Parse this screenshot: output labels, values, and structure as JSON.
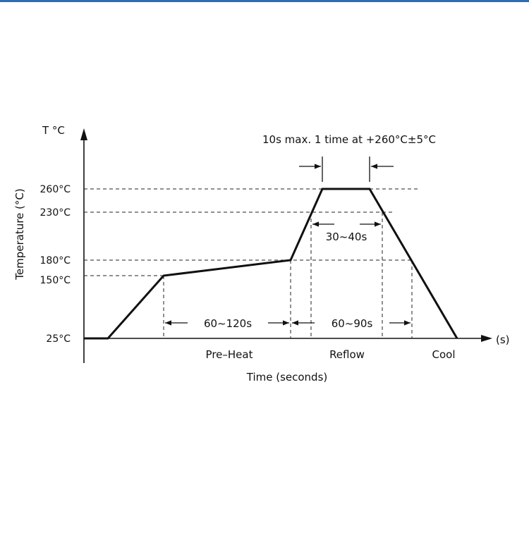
{
  "header_rule_color": "#2f6db0",
  "axis": {
    "y_unit": "T °C",
    "y_label": "Temperature (°C)",
    "x_unit": "(s)",
    "x_label": "Time (seconds)"
  },
  "y_ticks": [
    "260°C",
    "230°C",
    "180°C",
    "150°C",
    "25°C"
  ],
  "phases": {
    "preheat": "Pre–Heat",
    "reflow": "Reflow",
    "cool": "Cool"
  },
  "intervals": {
    "preheat_duration": "60~120s",
    "above_180_duration": "60~90s",
    "above_230_duration": "30~40s",
    "peak_note": "10s max. 1 time at +260°C±5°C"
  }
}
